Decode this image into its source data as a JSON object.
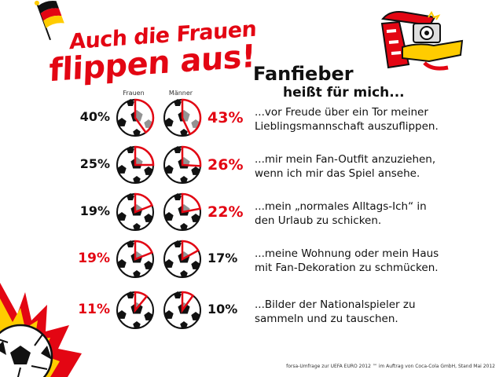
{
  "headline": {
    "line1": "Auch die Frauen",
    "line2": "flippen aus!"
  },
  "subtitle": {
    "line1": "Fanfieber",
    "line2": "heißt für mich..."
  },
  "footnote": "forsa-Umfrage zur UEFA EURO 2012 ™ im Auftrag von Coca-Cola GmbH, Stand Mai 2012",
  "colors": {
    "accent": "#e30613",
    "text": "#111111",
    "ball": "#111111"
  },
  "chart_data": {
    "type": "table",
    "columns": [
      "Frauen",
      "Männer"
    ],
    "rows": [
      {
        "label": "...vor Freude über ein Tor meiner Lieblingsmannschaft auszuflippen.",
        "label_lines": [
          "...vor Freude über ein Tor meiner",
          "Lieblingsmannschaft auszuflippen."
        ],
        "frauen": 40,
        "maenner": 43,
        "frauen_label": "40%",
        "maenner_label": "43%",
        "highlight": "maenner"
      },
      {
        "label": "...mir mein Fan-Outfit anzuziehen, wenn ich mir das Spiel ansehe.",
        "label_lines": [
          "...mir mein Fan-Outfit anzuziehen,",
          "wenn ich mir das Spiel ansehe."
        ],
        "frauen": 25,
        "maenner": 26,
        "frauen_label": "25%",
        "maenner_label": "26%",
        "highlight": "maenner"
      },
      {
        "label": "...mein „normales Alltags-Ich“ in den Urlaub zu schicken.",
        "label_lines": [
          "...mein „normales Alltags-Ich“ in",
          "den Urlaub zu schicken."
        ],
        "frauen": 19,
        "maenner": 22,
        "frauen_label": "19%",
        "maenner_label": "22%",
        "highlight": "maenner"
      },
      {
        "label": "...meine Wohnung oder mein Haus mit Fan-Dekoration zu schmücken.",
        "label_lines": [
          "...meine Wohnung oder mein Haus",
          "mit Fan-Dekoration zu schmücken."
        ],
        "frauen": 19,
        "maenner": 17,
        "frauen_label": "19%",
        "maenner_label": "17%",
        "highlight": "frauen"
      },
      {
        "label": "...Bilder der Nationalspieler zu sammeln und zu tauschen.",
        "label_lines": [
          "...Bilder der Nationalspieler zu",
          "sammeln und zu tauschen."
        ],
        "frauen": 11,
        "maenner": 10,
        "frauen_label": "11%",
        "maenner_label": "10%",
        "highlight": "frauen"
      }
    ]
  }
}
